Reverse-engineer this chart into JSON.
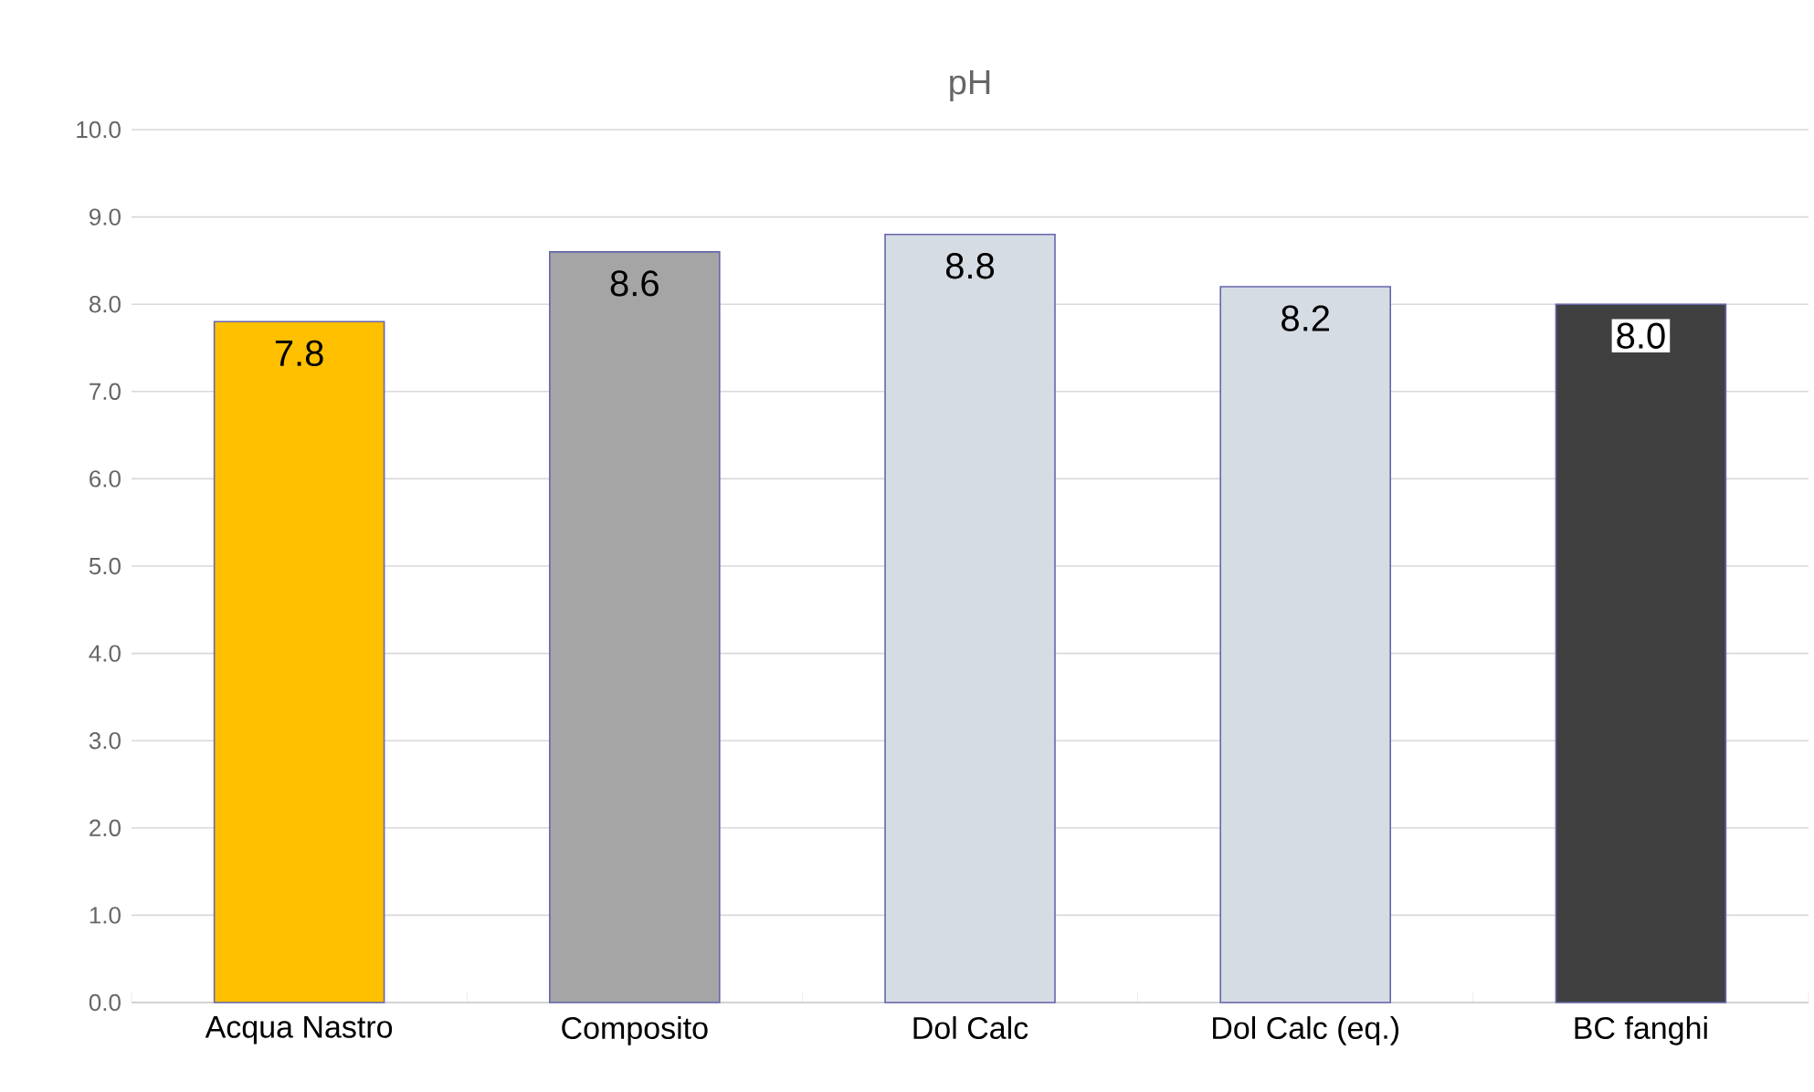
{
  "chart_data": {
    "type": "bar",
    "title": "pH",
    "categories": [
      "Acqua Nastro",
      "Composito",
      "Dol Calc",
      "Dol Calc (eq.)",
      "BC fanghi"
    ],
    "values": [
      7.8,
      8.6,
      8.8,
      8.2,
      8.0
    ],
    "colors": [
      "#ffc000",
      "#a5a5a5",
      "#d6dce4",
      "#d6dce4",
      "#404040"
    ],
    "value_labels": [
      "7.8",
      "8.6",
      "8.8",
      "8.2",
      "8.0"
    ],
    "ylim": [
      0,
      10
    ],
    "yticks": [
      {
        "value": 0,
        "label": "0.0"
      },
      {
        "value": 1,
        "label": "1.0"
      },
      {
        "value": 2,
        "label": "2.0"
      },
      {
        "value": 3,
        "label": "3.0"
      },
      {
        "value": 4,
        "label": "4.0"
      },
      {
        "value": 5,
        "label": "5.0"
      },
      {
        "value": 6,
        "label": "6.0"
      },
      {
        "value": 7,
        "label": "7.0"
      },
      {
        "value": 8,
        "label": "8.0"
      },
      {
        "value": 9,
        "label": "9.0"
      },
      {
        "value": 10,
        "label": "10.0"
      }
    ],
    "grid": "y"
  }
}
